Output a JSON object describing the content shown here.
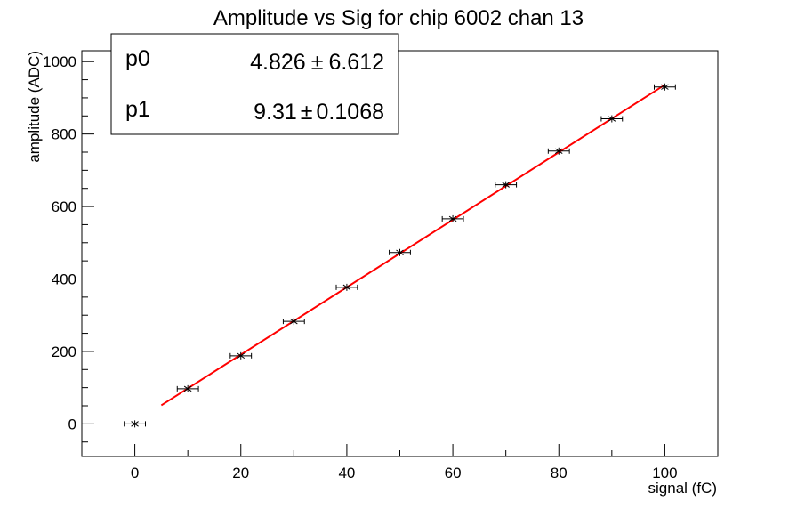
{
  "chart_data": {
    "type": "scatter",
    "title": "Amplitude vs Sig for chip 6002 chan 13",
    "xlabel": "signal (fC)",
    "ylabel": "amplitude (ADC)",
    "xlim": [
      -10,
      110
    ],
    "ylim": [
      -90,
      1030
    ],
    "x_ticks": [
      0,
      20,
      40,
      60,
      80,
      100
    ],
    "y_ticks": [
      0,
      200,
      400,
      600,
      800,
      1000
    ],
    "grid": false,
    "series": [
      {
        "marker": "star",
        "color": "#000000",
        "x": [
          0,
          10,
          20,
          30,
          40,
          50,
          60,
          70,
          80,
          90,
          100
        ],
        "y": [
          0,
          97,
          188,
          283,
          377,
          473,
          566,
          660,
          753,
          842,
          930
        ],
        "x_err": [
          2,
          2,
          2,
          2,
          2,
          2,
          2,
          2,
          2,
          2,
          2
        ]
      }
    ],
    "fit": {
      "type": "linear",
      "color": "#ff0000",
      "x_range": [
        5,
        100
      ],
      "params": [
        {
          "name": "p0",
          "value": "4.826",
          "error": "6.612",
          "num": 4.826
        },
        {
          "name": "p1",
          "value": "9.31",
          "error": "0.1068",
          "num": 9.31
        }
      ]
    },
    "legend_position": "top-left",
    "pm_symbol": "±"
  }
}
